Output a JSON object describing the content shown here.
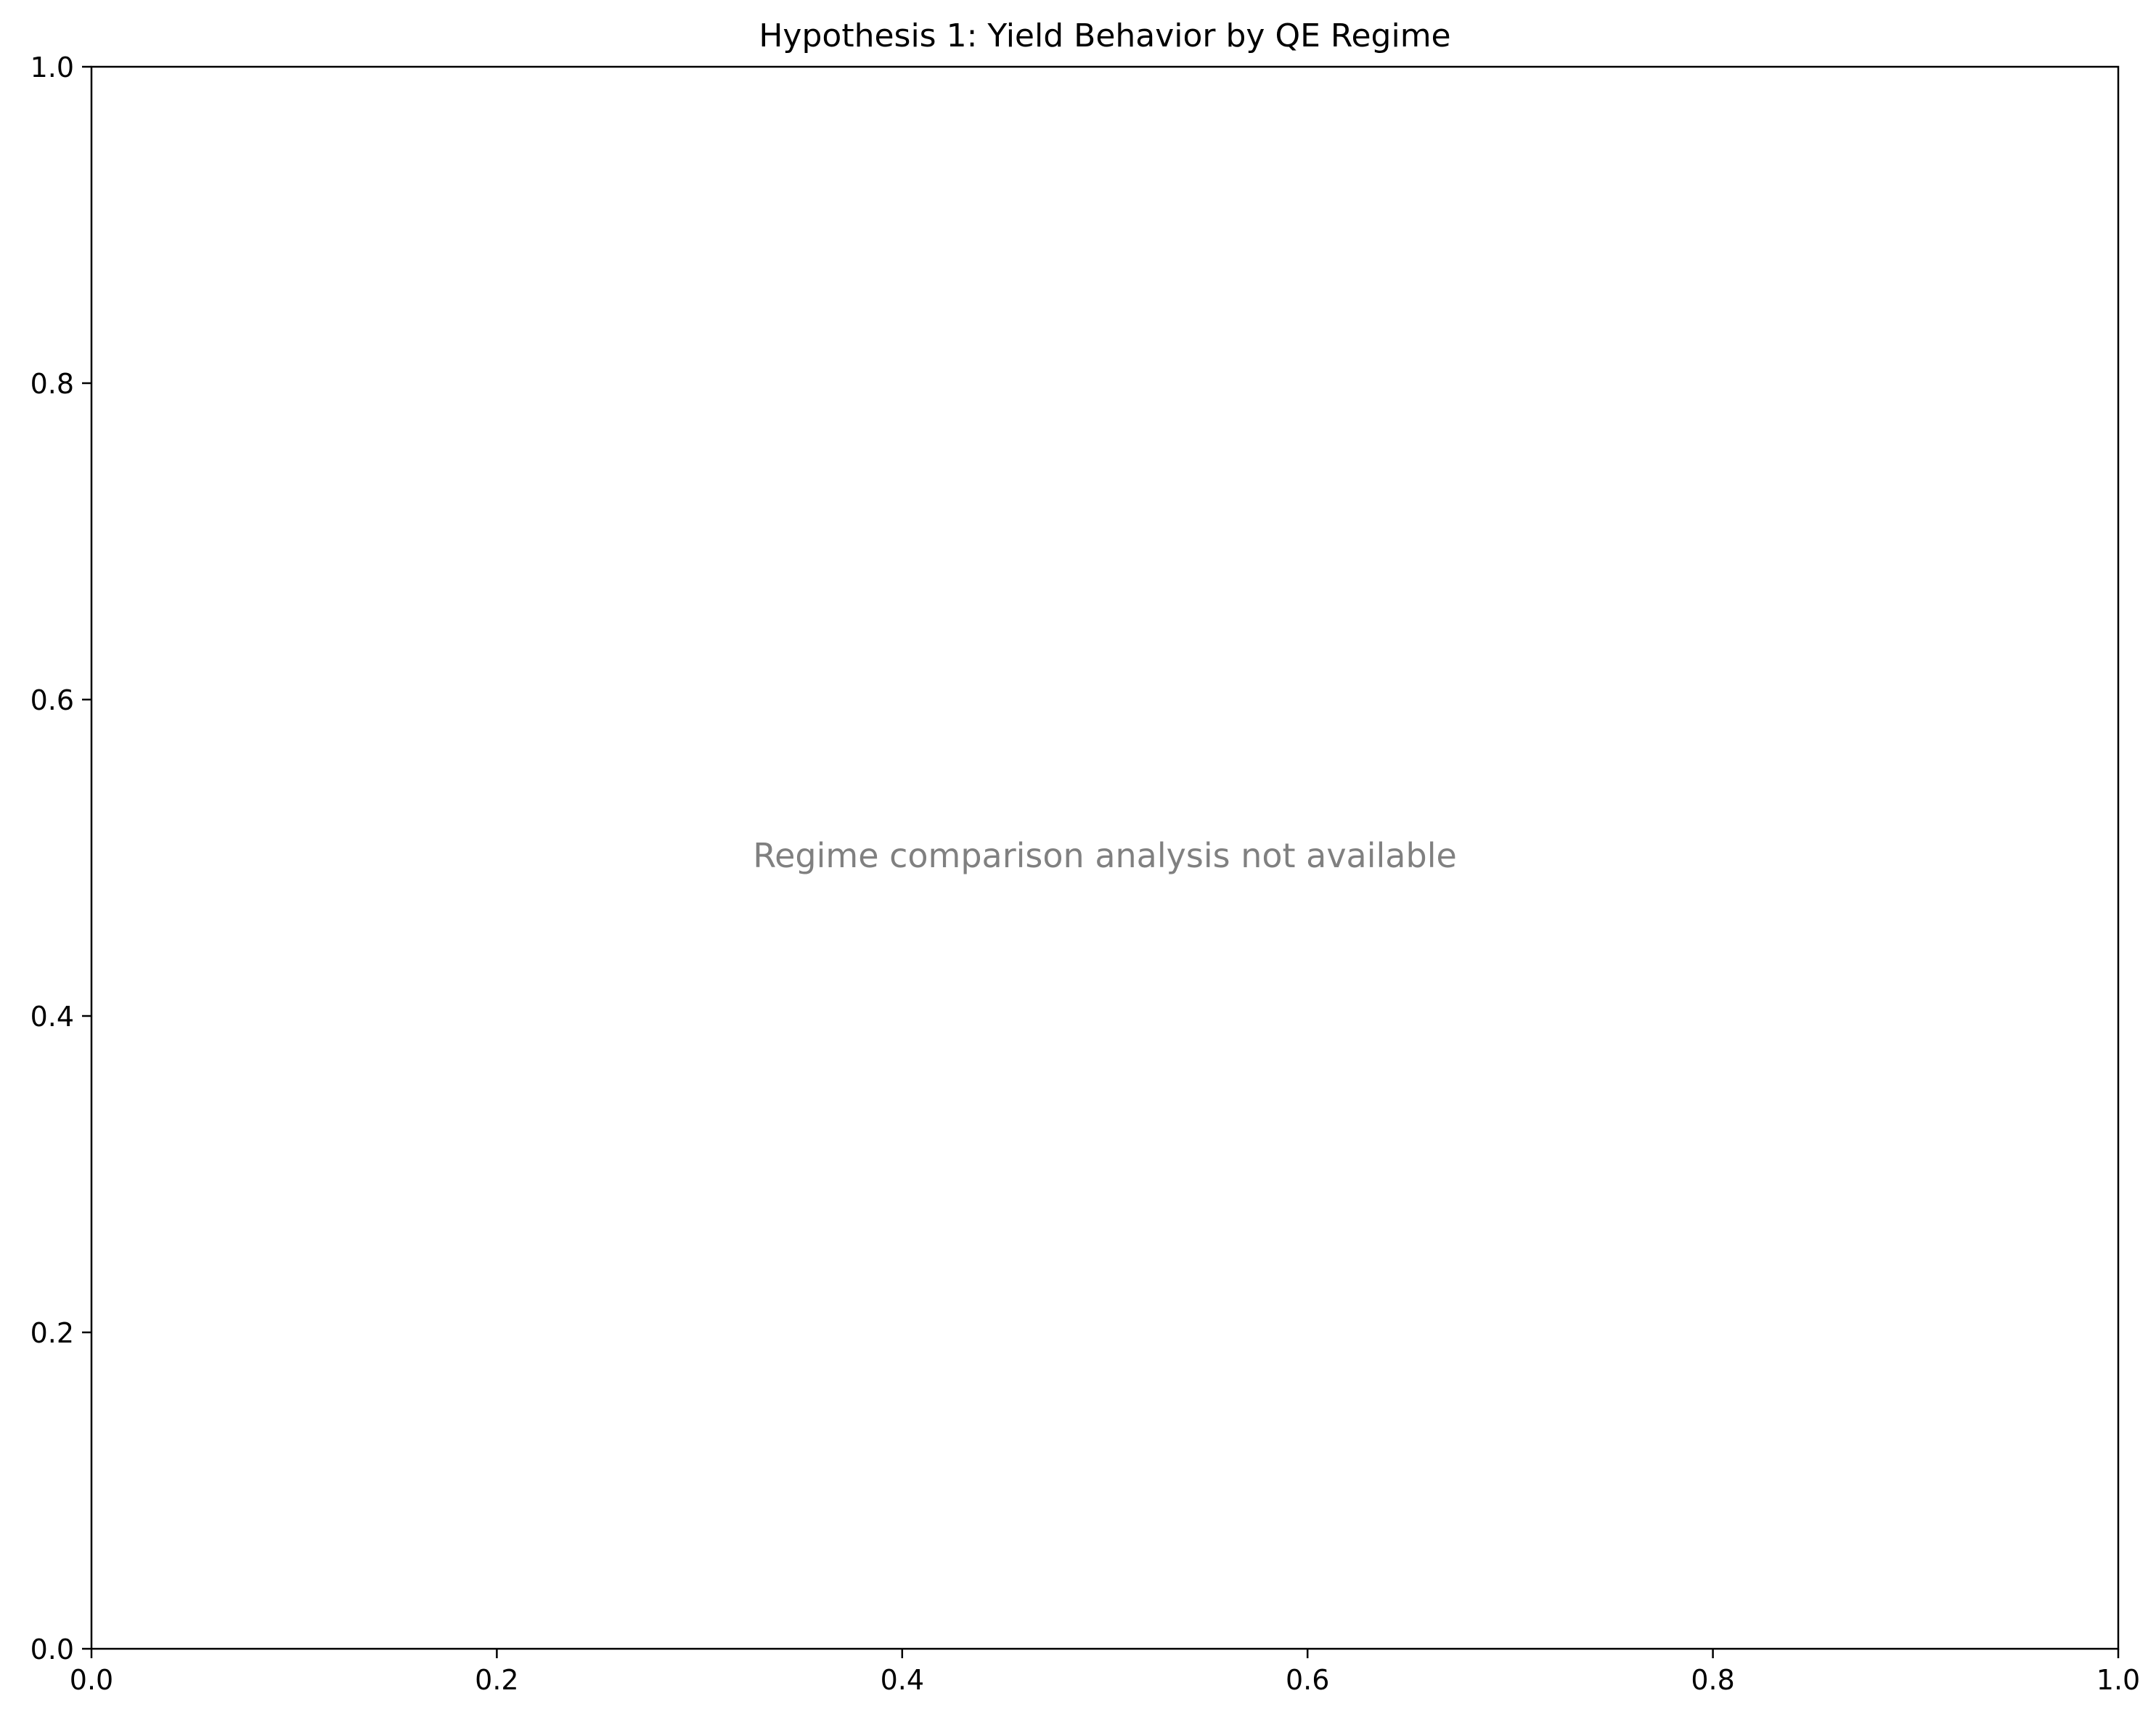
{
  "chart_data": {
    "type": "scatter",
    "title": "Hypothesis 1: Yield Behavior by QE Regime",
    "xlabel": "",
    "ylabel": "",
    "xlim": [
      0.0,
      1.0
    ],
    "ylim": [
      0.0,
      1.0
    ],
    "x_ticks": [
      "0.0",
      "0.2",
      "0.4",
      "0.6",
      "0.8",
      "1.0"
    ],
    "y_ticks": [
      "0.0",
      "0.2",
      "0.4",
      "0.6",
      "0.8",
      "1.0"
    ],
    "series": [],
    "grid": false,
    "annotation": "Regime comparison analysis not available",
    "annotation_color": "#808080",
    "axis_color": "#000000"
  }
}
